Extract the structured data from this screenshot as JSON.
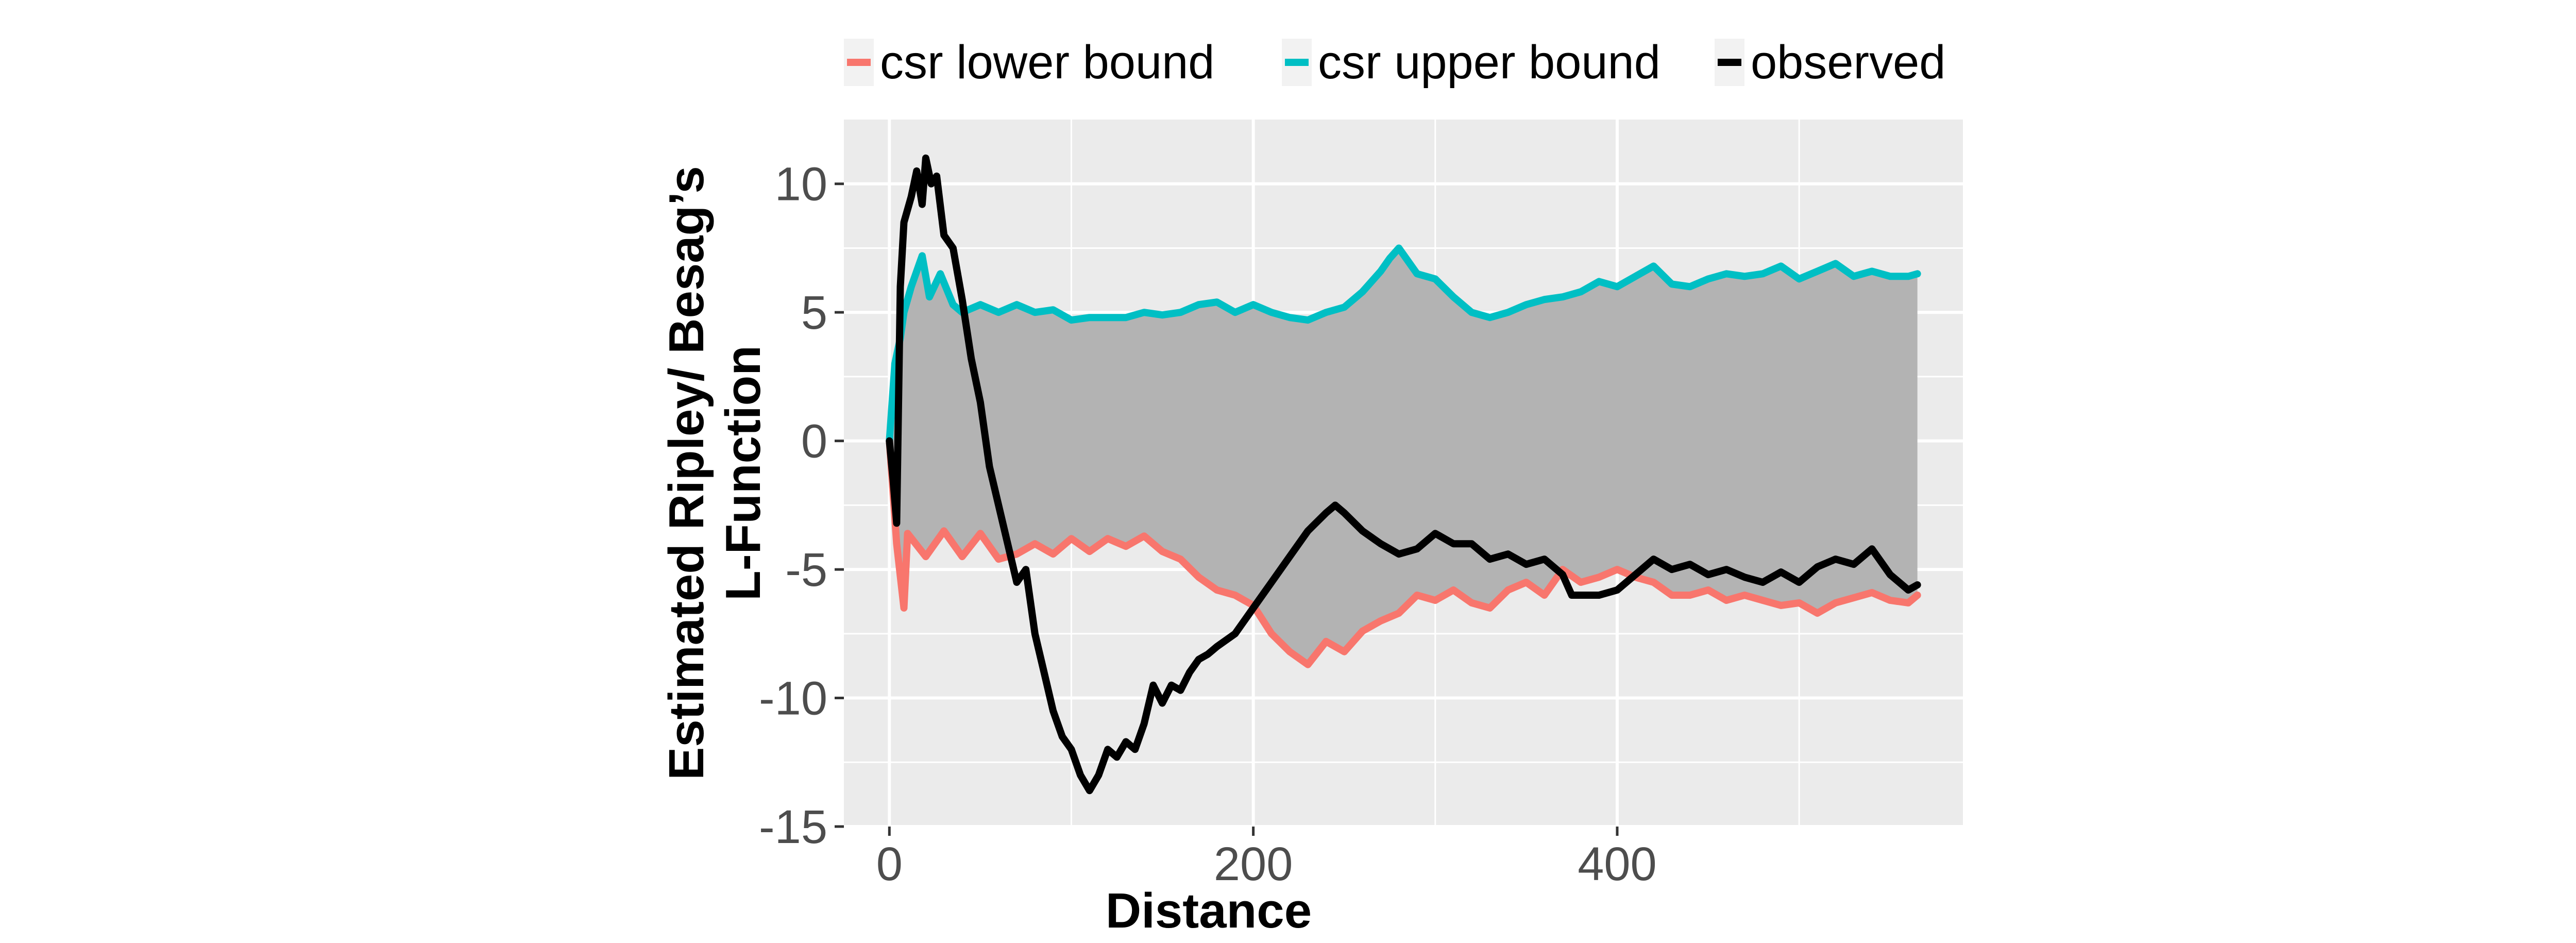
{
  "chart_data": {
    "type": "line",
    "xlabel": "Distance",
    "ylabel_lines": [
      "Estimated Ripley/ Besag’s",
      "L-Function"
    ],
    "xlim": [
      -25,
      590
    ],
    "ylim": [
      -15,
      12.5
    ],
    "x_ticks": [
      0,
      200,
      400
    ],
    "y_ticks": [
      10,
      5,
      0,
      -5,
      -10,
      -15
    ],
    "x_tick_labels": [
      "0",
      "200",
      "400"
    ],
    "y_tick_labels": [
      "10",
      "5",
      "0",
      "-5",
      "-10",
      "-15"
    ],
    "grid": true,
    "legend_position": "top",
    "ribbon": {
      "fill": "#b3b3b3",
      "between": [
        "csr lower bound",
        "csr upper bound"
      ]
    },
    "series": [
      {
        "name": "csr lower bound",
        "color": "#F8766D",
        "points": [
          [
            0,
            0
          ],
          [
            4,
            -4
          ],
          [
            8,
            -6.5
          ],
          [
            10,
            -3.6
          ],
          [
            20,
            -4.5
          ],
          [
            30,
            -3.5
          ],
          [
            40,
            -4.5
          ],
          [
            50,
            -3.6
          ],
          [
            60,
            -4.6
          ],
          [
            70,
            -4.4
          ],
          [
            80,
            -4.0
          ],
          [
            90,
            -4.4
          ],
          [
            100,
            -3.8
          ],
          [
            110,
            -4.3
          ],
          [
            120,
            -3.8
          ],
          [
            130,
            -4.1
          ],
          [
            140,
            -3.7
          ],
          [
            150,
            -4.3
          ],
          [
            160,
            -4.6
          ],
          [
            170,
            -5.3
          ],
          [
            180,
            -5.8
          ],
          [
            190,
            -6.0
          ],
          [
            200,
            -6.4
          ],
          [
            210,
            -7.5
          ],
          [
            220,
            -8.2
          ],
          [
            230,
            -8.7
          ],
          [
            240,
            -7.8
          ],
          [
            250,
            -8.2
          ],
          [
            260,
            -7.4
          ],
          [
            270,
            -7.0
          ],
          [
            280,
            -6.7
          ],
          [
            290,
            -6.0
          ],
          [
            300,
            -6.2
          ],
          [
            310,
            -5.8
          ],
          [
            320,
            -6.3
          ],
          [
            330,
            -6.5
          ],
          [
            340,
            -5.8
          ],
          [
            350,
            -5.5
          ],
          [
            360,
            -6.0
          ],
          [
            370,
            -5.0
          ],
          [
            380,
            -5.5
          ],
          [
            390,
            -5.3
          ],
          [
            400,
            -5.0
          ],
          [
            410,
            -5.3
          ],
          [
            420,
            -5.5
          ],
          [
            430,
            -6.0
          ],
          [
            440,
            -6.0
          ],
          [
            450,
            -5.8
          ],
          [
            460,
            -6.2
          ],
          [
            470,
            -6.0
          ],
          [
            480,
            -6.2
          ],
          [
            490,
            -6.4
          ],
          [
            500,
            -6.3
          ],
          [
            510,
            -6.7
          ],
          [
            520,
            -6.3
          ],
          [
            530,
            -6.1
          ],
          [
            540,
            -5.9
          ],
          [
            550,
            -6.2
          ],
          [
            560,
            -6.3
          ],
          [
            565,
            -6.0
          ]
        ]
      },
      {
        "name": "csr upper bound",
        "color": "#00BFC4",
        "points": [
          [
            0,
            0
          ],
          [
            3,
            3
          ],
          [
            6,
            4
          ],
          [
            8,
            5
          ],
          [
            12,
            6
          ],
          [
            18,
            7.2
          ],
          [
            22,
            5.6
          ],
          [
            28,
            6.5
          ],
          [
            35,
            5.3
          ],
          [
            40,
            5.0
          ],
          [
            50,
            5.3
          ],
          [
            60,
            5.0
          ],
          [
            70,
            5.3
          ],
          [
            80,
            5.0
          ],
          [
            90,
            5.1
          ],
          [
            100,
            4.7
          ],
          [
            110,
            4.8
          ],
          [
            120,
            4.8
          ],
          [
            130,
            4.8
          ],
          [
            140,
            5.0
          ],
          [
            150,
            4.9
          ],
          [
            160,
            5.0
          ],
          [
            170,
            5.3
          ],
          [
            180,
            5.4
          ],
          [
            190,
            5.0
          ],
          [
            200,
            5.3
          ],
          [
            210,
            5.0
          ],
          [
            220,
            4.8
          ],
          [
            230,
            4.7
          ],
          [
            240,
            5.0
          ],
          [
            250,
            5.2
          ],
          [
            260,
            5.8
          ],
          [
            270,
            6.6
          ],
          [
            275,
            7.1
          ],
          [
            280,
            7.5
          ],
          [
            290,
            6.5
          ],
          [
            300,
            6.3
          ],
          [
            310,
            5.6
          ],
          [
            320,
            5.0
          ],
          [
            330,
            4.8
          ],
          [
            340,
            5.0
          ],
          [
            350,
            5.3
          ],
          [
            360,
            5.5
          ],
          [
            370,
            5.6
          ],
          [
            380,
            5.8
          ],
          [
            390,
            6.2
          ],
          [
            400,
            6.0
          ],
          [
            410,
            6.4
          ],
          [
            420,
            6.8
          ],
          [
            430,
            6.1
          ],
          [
            440,
            6.0
          ],
          [
            450,
            6.3
          ],
          [
            460,
            6.5
          ],
          [
            470,
            6.4
          ],
          [
            480,
            6.5
          ],
          [
            490,
            6.8
          ],
          [
            500,
            6.3
          ],
          [
            510,
            6.6
          ],
          [
            520,
            6.9
          ],
          [
            530,
            6.4
          ],
          [
            540,
            6.6
          ],
          [
            550,
            6.4
          ],
          [
            560,
            6.4
          ],
          [
            565,
            6.5
          ]
        ]
      },
      {
        "name": "observed",
        "color": "#000000",
        "points": [
          [
            0,
            0
          ],
          [
            2,
            -1.5
          ],
          [
            4,
            -3.2
          ],
          [
            6,
            6
          ],
          [
            8,
            8.5
          ],
          [
            12,
            9.5
          ],
          [
            15,
            10.5
          ],
          [
            18,
            9.2
          ],
          [
            20,
            11
          ],
          [
            23,
            10
          ],
          [
            26,
            10.3
          ],
          [
            30,
            8
          ],
          [
            35,
            7.5
          ],
          [
            40,
            5.5
          ],
          [
            45,
            3.2
          ],
          [
            50,
            1.5
          ],
          [
            55,
            -1
          ],
          [
            60,
            -2.5
          ],
          [
            65,
            -4
          ],
          [
            70,
            -5.5
          ],
          [
            75,
            -5
          ],
          [
            80,
            -7.5
          ],
          [
            85,
            -9
          ],
          [
            90,
            -10.5
          ],
          [
            95,
            -11.5
          ],
          [
            100,
            -12
          ],
          [
            105,
            -13
          ],
          [
            110,
            -13.6
          ],
          [
            115,
            -13
          ],
          [
            120,
            -12
          ],
          [
            125,
            -12.3
          ],
          [
            130,
            -11.7
          ],
          [
            135,
            -12
          ],
          [
            140,
            -11
          ],
          [
            145,
            -9.5
          ],
          [
            150,
            -10.2
          ],
          [
            155,
            -9.5
          ],
          [
            160,
            -9.7
          ],
          [
            165,
            -9
          ],
          [
            170,
            -8.5
          ],
          [
            175,
            -8.3
          ],
          [
            180,
            -8
          ],
          [
            190,
            -7.5
          ],
          [
            200,
            -6.5
          ],
          [
            210,
            -5.5
          ],
          [
            220,
            -4.5
          ],
          [
            230,
            -3.5
          ],
          [
            240,
            -2.8
          ],
          [
            245,
            -2.5
          ],
          [
            250,
            -2.8
          ],
          [
            260,
            -3.5
          ],
          [
            270,
            -4
          ],
          [
            280,
            -4.4
          ],
          [
            290,
            -4.2
          ],
          [
            300,
            -3.6
          ],
          [
            310,
            -4
          ],
          [
            320,
            -4
          ],
          [
            330,
            -4.6
          ],
          [
            340,
            -4.4
          ],
          [
            350,
            -4.8
          ],
          [
            360,
            -4.6
          ],
          [
            370,
            -5.2
          ],
          [
            375,
            -6
          ],
          [
            380,
            -6
          ],
          [
            390,
            -6
          ],
          [
            400,
            -5.8
          ],
          [
            410,
            -5.2
          ],
          [
            420,
            -4.6
          ],
          [
            430,
            -5
          ],
          [
            440,
            -4.8
          ],
          [
            450,
            -5.2
          ],
          [
            460,
            -5
          ],
          [
            470,
            -5.3
          ],
          [
            480,
            -5.5
          ],
          [
            490,
            -5.1
          ],
          [
            500,
            -5.5
          ],
          [
            510,
            -4.9
          ],
          [
            520,
            -4.6
          ],
          [
            530,
            -4.8
          ],
          [
            540,
            -4.2
          ],
          [
            550,
            -5.2
          ],
          [
            560,
            -5.8
          ],
          [
            565,
            -5.6
          ]
        ]
      }
    ]
  }
}
